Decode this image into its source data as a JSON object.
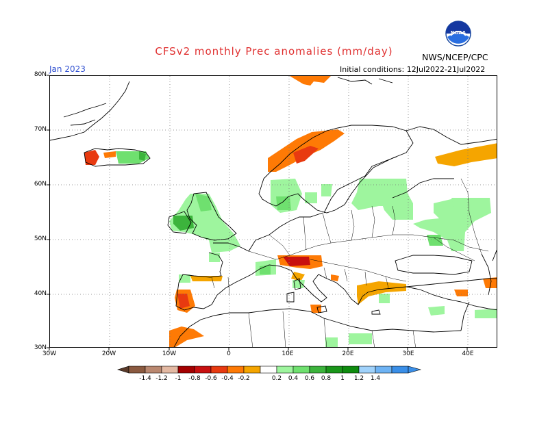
{
  "header": {
    "title": "CFSv2 monthly Prec anomalies (mm/day)",
    "month": "Jan 2023",
    "initial_conditions": "Initial conditions: 12Jul2022-21Jul2022",
    "agency": "NWS/NCEP/CPC",
    "logo_text": "NOAA"
  },
  "map": {
    "region": "Europe",
    "lat_ticks": [
      "80N",
      "70N",
      "60N",
      "50N",
      "40N",
      "30N"
    ],
    "lon_ticks": [
      "30W",
      "20W",
      "10W",
      "0",
      "10E",
      "20E",
      "30E",
      "40E"
    ],
    "grid": "dotted"
  },
  "colorbar": {
    "labels": [
      "-1.4",
      "-1.2",
      "-1",
      "-0.8",
      "-0.6",
      "-0.4",
      "-0.2",
      "0.2",
      "0.4",
      "0.6",
      "0.8",
      "1",
      "1.2",
      "1.4"
    ],
    "colors": [
      "#8b5a40",
      "#ba8870",
      "#e3b9a3",
      "#a40000",
      "#c81010",
      "#e83a10",
      "#fe7a05",
      "#f5a500",
      "#ffffff",
      "#9ef59e",
      "#6fe06f",
      "#3cb43c",
      "#1a961a",
      "#0f8c0f",
      "#a0d2fb",
      "#6eb3f4",
      "#3a8fe8"
    ],
    "below_color": "#5a3a2a",
    "above_color": "#3a8fe8"
  },
  "anomalies": {
    "dry_regions": [
      "Norway coast",
      "Alps / N Italy",
      "Portugal",
      "NW Morocco",
      "Iceland west",
      "N Russia coast",
      "Greece / Turkey coast",
      "Spain north coast"
    ],
    "wet_regions": [
      "British Isles",
      "Iceland east",
      "Sweden / Denmark",
      "Baltic / NW Russia",
      "Central Russia",
      "Pyrenees",
      "Balkans south",
      "North Africa coast"
    ]
  }
}
